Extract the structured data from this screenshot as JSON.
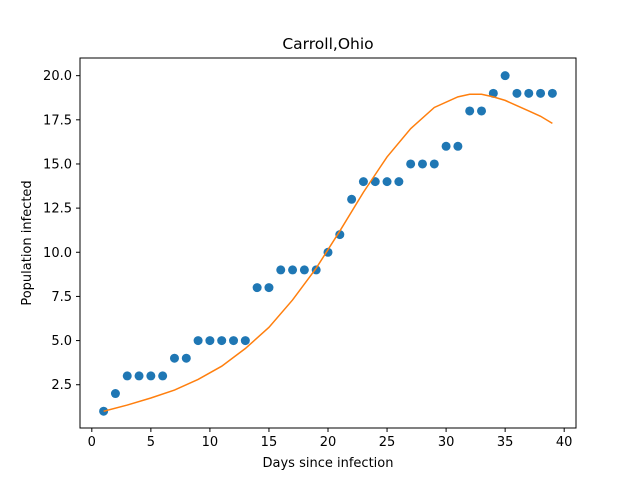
{
  "chart_data": {
    "type": "scatter",
    "title": "Carroll,Ohio",
    "xlabel": "Days since infection",
    "ylabel": "Population infected",
    "xlim": [
      -1,
      41
    ],
    "ylim": [
      0.05,
      21.0
    ],
    "xticks": [
      0,
      5,
      10,
      15,
      20,
      25,
      30,
      35,
      40
    ],
    "xtick_labels": [
      "0",
      "5",
      "10",
      "15",
      "20",
      "25",
      "30",
      "35",
      "40"
    ],
    "yticks": [
      2.5,
      5.0,
      7.5,
      10.0,
      12.5,
      15.0,
      17.5,
      20.0
    ],
    "ytick_labels": [
      "2.5",
      "5.0",
      "7.5",
      "10.0",
      "12.5",
      "15.0",
      "17.5",
      "20.0"
    ],
    "grid": false,
    "series": [
      {
        "kind": "scatter",
        "color": "#1f77b4",
        "x": [
          1,
          2,
          3,
          4,
          5,
          6,
          7,
          8,
          9,
          10,
          11,
          12,
          13,
          14,
          15,
          16,
          17,
          18,
          19,
          20,
          21,
          22,
          23,
          24,
          25,
          26,
          27,
          28,
          29,
          30,
          31,
          32,
          33,
          34,
          35,
          36,
          37,
          38,
          39
        ],
        "y": [
          1,
          2,
          3,
          3,
          3,
          3,
          4,
          4,
          5,
          5,
          5,
          5,
          5,
          8,
          8,
          9,
          9,
          9,
          9,
          10,
          11,
          13,
          14,
          14,
          14,
          14,
          15,
          15,
          15,
          16,
          16,
          18,
          18,
          19,
          20,
          19,
          19,
          19,
          19
        ]
      },
      {
        "kind": "line",
        "color": "#ff7f0e",
        "x": [
          1,
          3,
          5,
          7,
          9,
          11,
          13,
          15,
          17,
          19,
          21,
          23,
          25,
          27,
          29,
          31,
          32,
          33,
          34,
          35,
          36,
          37,
          38,
          39
        ],
        "y": [
          1.0,
          1.35,
          1.75,
          2.2,
          2.8,
          3.55,
          4.55,
          5.75,
          7.3,
          9.1,
          11.2,
          13.4,
          15.4,
          17.0,
          18.2,
          18.8,
          18.95,
          18.95,
          18.8,
          18.6,
          18.3,
          18.0,
          17.7,
          17.3
        ]
      }
    ]
  }
}
